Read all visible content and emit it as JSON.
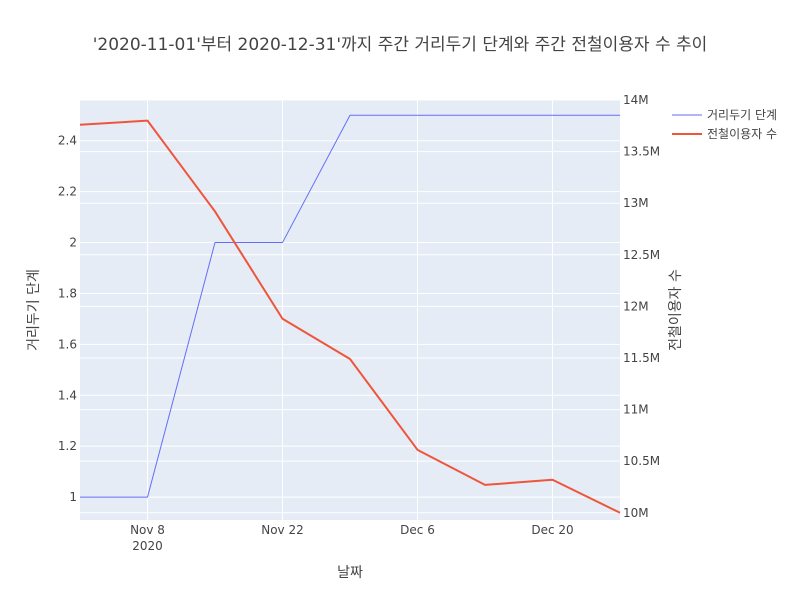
{
  "chart_data": {
    "type": "line",
    "title": "'2020-11-01'부터 2020-12-31'까지 주간 거리두기 단계와 주간 전철이용자 수 추이",
    "xlabel": "날짜",
    "ylabel_left": "거리두기 단계",
    "ylabel_right": "전철이용자 수",
    "x_dates": [
      "2020-11-01",
      "2020-11-08",
      "2020-11-15",
      "2020-11-22",
      "2020-11-29",
      "2020-12-06",
      "2020-12-13",
      "2020-12-20",
      "2020-12-27"
    ],
    "x_range": [
      "2020-11-01",
      "2020-12-27"
    ],
    "x_ticks": [
      {
        "date": "2020-11-08",
        "label": "Nov 8",
        "sublabel": "2020"
      },
      {
        "date": "2020-11-22",
        "label": "Nov 22",
        "sublabel": ""
      },
      {
        "date": "2020-12-06",
        "label": "Dec 6",
        "sublabel": ""
      },
      {
        "date": "2020-12-20",
        "label": "Dec 20",
        "sublabel": ""
      }
    ],
    "y_left_range": [
      0.91,
      2.56
    ],
    "y_left_ticks": [
      {
        "value": 1,
        "label": "1"
      },
      {
        "value": 1.2,
        "label": "1.2"
      },
      {
        "value": 1.4,
        "label": "1.4"
      },
      {
        "value": 1.6,
        "label": "1.6"
      },
      {
        "value": 1.8,
        "label": "1.8"
      },
      {
        "value": 2,
        "label": "2"
      },
      {
        "value": 2.2,
        "label": "2.2"
      },
      {
        "value": 2.4,
        "label": "2.4"
      }
    ],
    "y_right_range": [
      9930000,
      14000000
    ],
    "y_right_ticks": [
      {
        "value": 10000000,
        "label": "10M"
      },
      {
        "value": 10500000,
        "label": "10.5M"
      },
      {
        "value": 11000000,
        "label": "11M"
      },
      {
        "value": 11500000,
        "label": "11.5M"
      },
      {
        "value": 12000000,
        "label": "12M"
      },
      {
        "value": 12500000,
        "label": "12.5M"
      },
      {
        "value": 13000000,
        "label": "13M"
      },
      {
        "value": 13500000,
        "label": "13.5M"
      },
      {
        "value": 14000000,
        "label": "14M"
      }
    ],
    "series": [
      {
        "name": "거리두기 단계",
        "axis": "left",
        "color": "#636efa",
        "values": [
          1,
          1,
          2,
          2,
          2.5,
          2.5,
          2.5,
          2.5,
          2.5
        ]
      },
      {
        "name": "전철이용자 수",
        "axis": "right",
        "color": "#ef553b",
        "values": [
          13760000,
          13800000,
          12920000,
          11880000,
          11490000,
          10610000,
          10270000,
          10320000,
          10000000
        ]
      }
    ],
    "grid": true,
    "legend_position": "top-right",
    "plot_bg": "#e5ecf6"
  }
}
